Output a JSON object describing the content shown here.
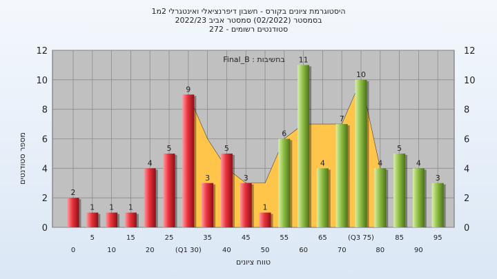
{
  "header": {
    "title_line1": "היסטוגרמת ציונים בקורס - חשבון דיפרנציאלי ואינטגרלי 2מ1",
    "title_line2": "בסמסטר  (02/2022)  סמסטר אביב 2022/23",
    "title_line3": "סטודנטים רשומים - 272"
  },
  "colors": {
    "bar_red": "#e8323c",
    "bar_green": "#8fbf45",
    "area_fill": "#ffc54a",
    "plot_bg": "#c0c0c0"
  },
  "chart_data": {
    "type": "bar",
    "legend_text": "בחשיבות : Final_B",
    "ylabel": "מספר סטודנטים",
    "xlabel": "טווח ציונים",
    "ylim": [
      0,
      12
    ],
    "yticks": [
      0,
      2,
      4,
      6,
      8,
      10,
      12
    ],
    "grid": true,
    "categories": [
      0,
      5,
      10,
      15,
      20,
      25,
      30,
      35,
      40,
      45,
      50,
      55,
      60,
      65,
      70,
      75,
      80,
      85,
      90,
      95
    ],
    "category_labels": [
      "0",
      "5",
      "10",
      "15",
      "20",
      "25",
      "(Q1 30)",
      "35",
      "40",
      "45",
      "50",
      "55",
      "60",
      "65",
      "70",
      "(Q3 75)",
      "80",
      "85",
      "90",
      "95"
    ],
    "values": [
      2,
      1,
      1,
      1,
      4,
      5,
      9,
      3,
      5,
      3,
      1,
      6,
      11,
      4,
      7,
      10,
      4,
      5,
      4,
      3
    ],
    "value_labels": [
      "2",
      "1",
      "1",
      "1",
      "4",
      "5",
      "9",
      "3",
      "5",
      "3",
      "1",
      "6",
      "11",
      "4",
      "7",
      "10",
      "4",
      "5",
      "4",
      "3"
    ],
    "bar_colors": [
      "red",
      "red",
      "red",
      "red",
      "red",
      "red",
      "red",
      "red",
      "red",
      "red",
      "red",
      "green",
      "green",
      "green",
      "green",
      "green",
      "green",
      "green",
      "green",
      "green"
    ],
    "area_series": {
      "name": "",
      "points": [
        [
          30,
          9
        ],
        [
          35,
          6
        ],
        [
          40,
          4
        ],
        [
          45,
          3
        ],
        [
          50,
          3
        ],
        [
          55,
          6
        ],
        [
          60,
          7
        ],
        [
          65,
          7
        ],
        [
          70,
          7
        ],
        [
          75,
          10
        ],
        [
          80,
          4
        ]
      ]
    }
  }
}
